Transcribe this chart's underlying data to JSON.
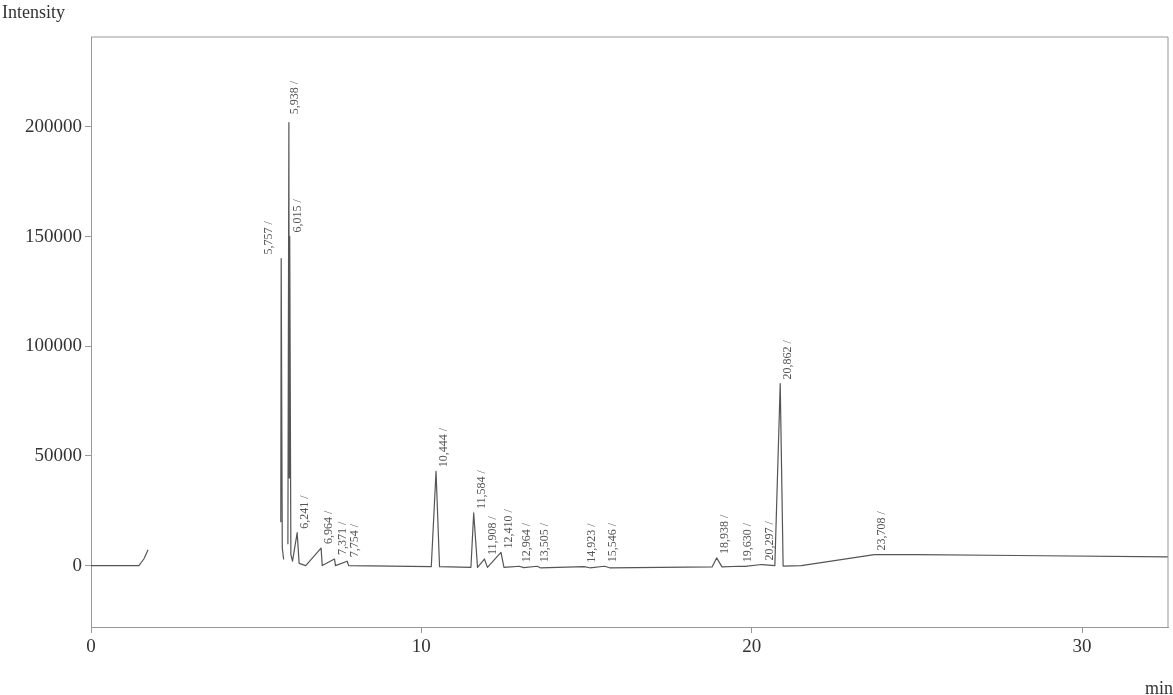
{
  "chart_data": {
    "type": "line",
    "xlabel": "min",
    "ylabel": "Intensity",
    "xlim": [
      0,
      32.6
    ],
    "ylim": [
      -28000,
      241000
    ],
    "xticks": [
      0,
      10,
      20,
      30
    ],
    "yticks": [
      0,
      50000,
      100000,
      150000,
      200000
    ],
    "grid": false,
    "legend": false,
    "marker": "none",
    "line_style": "solid",
    "series": [
      {
        "color": "#555555",
        "x": [
          0,
          1.45,
          1.6,
          1.72,
          1.79,
          1.88,
          3.8,
          5.72,
          5.745,
          5.757,
          5.79,
          5.83,
          5.88,
          5.96,
          5.99,
          6.0,
          6.015,
          6.05,
          6.1,
          6.241,
          6.3,
          6.5,
          6.964,
          7.0,
          7.371,
          7.4,
          7.754,
          7.8,
          10.3,
          10.444,
          10.55,
          11.5,
          11.584,
          11.7,
          11.908,
          12.0,
          12.41,
          12.5,
          12.964,
          13.1,
          13.505,
          13.6,
          14.923,
          15.1,
          15.546,
          15.7,
          18.8,
          18.938,
          19.1,
          19.63,
          19.8,
          20.297,
          20.7,
          20.862,
          20.95,
          21.5,
          23.708,
          25,
          32.6
        ],
        "values": [
          0,
          0,
          3000,
          7000,
          null,
          null,
          null,
          null,
          20000,
          140000,
          8000,
          3000,
          null,
          10000,
          202000,
          40000,
          150000,
          5000,
          2000,
          15000,
          1000,
          0,
          8000,
          0,
          3000,
          0,
          2000,
          0,
          -500,
          43000,
          -500,
          -800,
          24000,
          -800,
          3000,
          -800,
          6000,
          -800,
          -300,
          -900,
          -300,
          -1000,
          -500,
          -1000,
          -300,
          -1000,
          -600,
          3500,
          -600,
          -300,
          -400,
          500,
          0,
          83000,
          -200,
          0,
          5000,
          5000,
          4000
        ]
      }
    ],
    "annotations": [
      {
        "text": "5,757 /",
        "x": 5.757,
        "y": 140000
      },
      {
        "text": "5,938 /",
        "x": 5.938,
        "y": 204000
      },
      {
        "text": "6,015 /",
        "x": 6.015,
        "y": 150000
      },
      {
        "text": "6,241 /",
        "x": 6.241,
        "y": 15000
      },
      {
        "text": "6,964 /",
        "x": 6.964,
        "y": 8000
      },
      {
        "text": "7,371 /",
        "x": 7.371,
        "y": 3000
      },
      {
        "text": "7,754 /",
        "x": 7.754,
        "y": 2000
      },
      {
        "text": "10,444 /",
        "x": 10.444,
        "y": 43000
      },
      {
        "text": "11,584 /",
        "x": 11.584,
        "y": 24000
      },
      {
        "text": "11,908 /",
        "x": 11.908,
        "y": 3000
      },
      {
        "text": "12,410 /",
        "x": 12.41,
        "y": 6000
      },
      {
        "text": "12,964 /",
        "x": 12.964,
        "y": -300
      },
      {
        "text": "13,505 /",
        "x": 13.505,
        "y": -300
      },
      {
        "text": "14,923 /",
        "x": 14.923,
        "y": -500
      },
      {
        "text": "15,546 /",
        "x": 15.546,
        "y": -300
      },
      {
        "text": "18,938 /",
        "x": 18.938,
        "y": 3500
      },
      {
        "text": "19,630 /",
        "x": 19.63,
        "y": -300
      },
      {
        "text": "20,297 /",
        "x": 20.297,
        "y": 500
      },
      {
        "text": "20,862 /",
        "x": 20.862,
        "y": 83000
      },
      {
        "text": "23,708 /",
        "x": 23.708,
        "y": 5000
      }
    ]
  }
}
